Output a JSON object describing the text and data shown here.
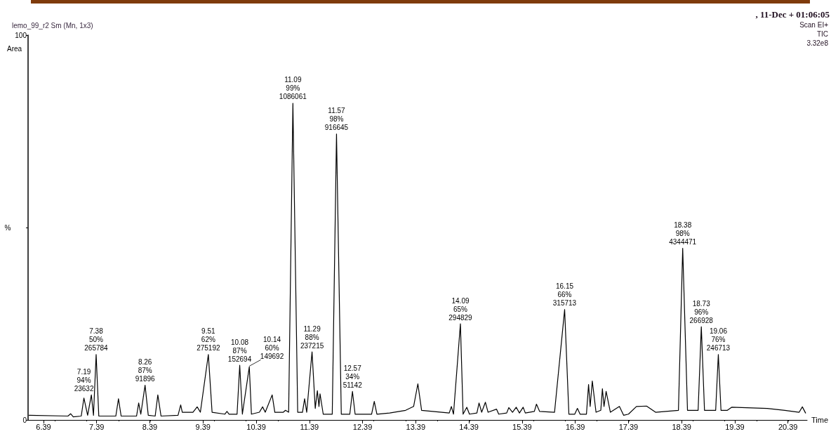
{
  "chart_data": {
    "type": "line",
    "title": "lemo_99_r2 Sm (Mn, 1x3)",
    "xlabel": "Time",
    "ylabel": "%",
    "annotations": [
      ", 11-Dec + 01:06:05",
      "Scan EI+",
      "TIC",
      "3.32e8",
      "Area",
      {
        "text": "7.19\n94%\n23632",
        "x": 7.15,
        "y": 5.7
      },
      {
        "text": "7.38\n50%\n265784",
        "x": 7.38,
        "y": 17
      },
      {
        "text": "8.26\n87%\n91896",
        "x": 8.3,
        "y": 9
      },
      {
        "text": "9.51\n62%\n275192",
        "x": 9.49,
        "y": 17
      },
      {
        "text": "10.08\n87%\n152694",
        "x": 10.08,
        "y": 14.2
      },
      {
        "text": "10.14\n60%\n149692",
        "x": 10.26,
        "y": 13.8
      },
      {
        "text": "11.09\n99%\n1086061",
        "x": 11.08,
        "y": 82.3
      },
      {
        "text": "11.29\n88%\n237215",
        "x": 11.44,
        "y": 17.7
      },
      {
        "text": "11.57\n98%\n916645",
        "x": 11.9,
        "y": 74.3
      },
      {
        "text": "12.57\n34%\n51142",
        "x": 12.2,
        "y": 7.4
      },
      {
        "text": "14.09\n65%\n294829",
        "x": 14.23,
        "y": 25
      },
      {
        "text": "16.15\n66%\n315713",
        "x": 16.19,
        "y": 28.7
      },
      {
        "text": "18.38\n98%\n4344471",
        "x": 18.41,
        "y": 44.6
      },
      {
        "text": "18.73\n96%\n266928",
        "x": 18.76,
        "y": 24.2
      },
      {
        "text": "19.06\n76%\n246713",
        "x": 19.08,
        "y": 17
      }
    ],
    "x": [
      6.12,
      6.85,
      6.9,
      6.95,
      7.1,
      7.15,
      7.22,
      7.29,
      7.33,
      7.38,
      7.43,
      7.75,
      7.8,
      7.85,
      8.14,
      8.18,
      8.22,
      8.3,
      8.36,
      8.49,
      8.54,
      8.6,
      8.92,
      8.97,
      9.0,
      9.2,
      9.28,
      9.34,
      9.49,
      9.56,
      9.8,
      9.84,
      9.88,
      10.03,
      10.08,
      10.13,
      10.26,
      10.3,
      10.45,
      10.51,
      10.56,
      10.69,
      10.74,
      10.9,
      10.94,
      11.0,
      11.08,
      11.17,
      11.26,
      11.3,
      11.34,
      11.44,
      11.5,
      11.54,
      11.57,
      11.59,
      11.65,
      11.82,
      11.9,
      11.99,
      12.15,
      12.2,
      12.25,
      12.56,
      12.61,
      12.66,
      12.9,
      13.2,
      13.35,
      13.43,
      13.5,
      14.02,
      14.06,
      14.1,
      14.23,
      14.28,
      14.35,
      14.4,
      14.54,
      14.58,
      14.63,
      14.7,
      14.75,
      14.91,
      14.95,
      15.1,
      15.14,
      15.21,
      15.28,
      15.34,
      15.41,
      15.45,
      15.62,
      15.66,
      15.72,
      16.0,
      16.19,
      16.27,
      16.38,
      16.43,
      16.48,
      16.6,
      16.64,
      16.67,
      16.71,
      16.78,
      16.87,
      16.9,
      16.93,
      16.97,
      17.05,
      17.22,
      17.3,
      17.39,
      17.54,
      17.73,
      17.9,
      18.17,
      18.33,
      18.41,
      18.5,
      18.56,
      18.7,
      18.76,
      18.82,
      19.03,
      19.08,
      19.13,
      19.25,
      19.33,
      20.0,
      20.33,
      20.6,
      20.66,
      20.72
    ],
    "series": [
      {
        "color": "#000000",
        "values": [
          1.2,
          1.0,
          1.6,
          0.8,
          1.0,
          5.7,
          1.2,
          6.5,
          1.2,
          17,
          1.0,
          1.0,
          5.5,
          1.0,
          1.0,
          4.4,
          1.5,
          9,
          1.2,
          1.0,
          6.5,
          1.0,
          1.2,
          3.9,
          2.0,
          2.0,
          3.4,
          2.0,
          17,
          2.0,
          1.5,
          2.2,
          1.5,
          1.5,
          14.2,
          1.5,
          13.8,
          1.5,
          2.0,
          3.4,
          2.0,
          6.5,
          2.0,
          2.0,
          2.5,
          2.0,
          82.3,
          2.0,
          2.0,
          5.5,
          2.0,
          17.7,
          3.0,
          7.6,
          3.5,
          6.8,
          1.5,
          1.5,
          74.3,
          1.5,
          1.5,
          7.4,
          1.5,
          1.5,
          4.8,
          1.5,
          1.8,
          2.5,
          3.5,
          9.4,
          2.5,
          1.8,
          3.5,
          1.5,
          25,
          1.5,
          3.3,
          1.5,
          1.8,
          4.4,
          2.0,
          4.6,
          2.0,
          2.8,
          1.5,
          1.8,
          3.2,
          2.0,
          3.3,
          1.8,
          3.3,
          1.8,
          2.2,
          4.1,
          2.2,
          2.0,
          28.7,
          1.5,
          1.5,
          3.0,
          1.5,
          1.5,
          9.2,
          3.5,
          10.1,
          2.0,
          2.5,
          8.1,
          3.5,
          7.4,
          2.0,
          3.5,
          1.2,
          1.5,
          3.5,
          3.6,
          2.0,
          2.3,
          2.5,
          44.6,
          2.5,
          2.5,
          2.5,
          24.2,
          2.5,
          2.5,
          17,
          2.5,
          2.5,
          3.3,
          3.0,
          2.5,
          2.0,
          3.4,
          1.8
        ]
      }
    ],
    "xlim": [
      6.1,
      20.75
    ],
    "xticks": [
      6.39,
      7.39,
      8.39,
      9.39,
      10.39,
      11.39,
      12.39,
      13.39,
      14.39,
      15.39,
      16.39,
      17.39,
      18.39,
      19.39,
      20.39
    ],
    "ylim": [
      0,
      100
    ],
    "yticks": [
      0,
      {
        "value": 50,
        "label": null
      },
      100
    ],
    "marker": "none",
    "line_style": "solid",
    "grid": false
  }
}
